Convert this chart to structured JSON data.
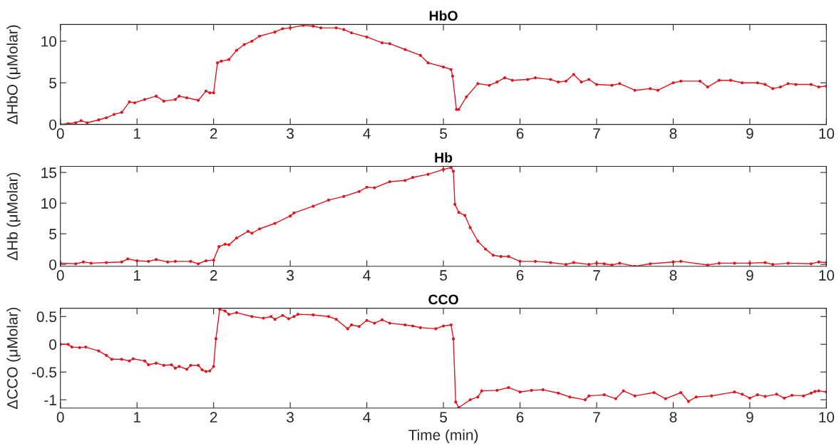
{
  "chart_data": [
    {
      "type": "line",
      "title": "HbO",
      "ylabel": "ΔHbO (μMolar)",
      "xlim": [
        0,
        10
      ],
      "xticks": [
        0,
        1,
        2,
        3,
        4,
        5,
        6,
        7,
        8,
        9,
        10
      ],
      "ylim": [
        0,
        12
      ],
      "yticks": [
        0,
        5,
        10
      ],
      "grid": false,
      "legend": false,
      "marker": "circle",
      "line_style": "solid",
      "series": [
        {
          "color": "#e0141e",
          "x": [
            0,
            0.1,
            0.2,
            0.27,
            0.35,
            0.5,
            0.6,
            0.7,
            0.8,
            0.9,
            0.97,
            1.1,
            1.25,
            1.35,
            1.5,
            1.55,
            1.65,
            1.8,
            1.9,
            1.95,
            2.0,
            2.05,
            2.1,
            2.2,
            2.3,
            2.4,
            2.5,
            2.6,
            2.8,
            2.9,
            3.0,
            3.17,
            3.3,
            3.4,
            3.6,
            3.7,
            3.8,
            4.0,
            4.2,
            4.3,
            4.5,
            4.7,
            4.8,
            5.0,
            5.1,
            5.12,
            5.17,
            5.2,
            5.3,
            5.45,
            5.6,
            5.7,
            5.8,
            5.9,
            6.1,
            6.2,
            6.4,
            6.5,
            6.6,
            6.7,
            6.8,
            6.9,
            7.0,
            7.2,
            7.3,
            7.5,
            7.7,
            7.8,
            8.0,
            8.1,
            8.35,
            8.45,
            8.6,
            8.75,
            8.9,
            9.1,
            9.2,
            9.3,
            9.4,
            9.5,
            9.6,
            9.8,
            9.9,
            10.0
          ],
          "values": [
            0,
            0.1,
            0.2,
            0.45,
            0.2,
            0.55,
            0.8,
            1.2,
            1.45,
            2.7,
            2.6,
            3.0,
            3.4,
            2.8,
            3.0,
            3.4,
            3.2,
            2.9,
            4.0,
            3.8,
            3.8,
            7.4,
            7.6,
            7.8,
            8.9,
            9.6,
            10.0,
            10.6,
            11.1,
            11.5,
            11.6,
            11.9,
            11.8,
            11.6,
            11.6,
            11.4,
            11.0,
            10.5,
            9.8,
            9.7,
            9.0,
            8.3,
            7.4,
            6.9,
            6.6,
            5.8,
            1.8,
            1.8,
            3.3,
            4.9,
            4.7,
            5.1,
            5.6,
            5.3,
            5.4,
            5.6,
            5.4,
            5.1,
            5.2,
            6.0,
            5.1,
            5.4,
            4.8,
            4.7,
            4.9,
            4.1,
            4.3,
            4.1,
            5.0,
            5.2,
            5.2,
            4.5,
            5.3,
            5.3,
            5.0,
            5.0,
            4.8,
            4.3,
            4.5,
            4.9,
            4.8,
            4.8,
            4.5,
            4.6
          ]
        }
      ]
    },
    {
      "type": "line",
      "title": "Hb",
      "ylabel": "ΔHb (μMolar)",
      "xlim": [
        0,
        10
      ],
      "xticks": [
        0,
        1,
        2,
        3,
        4,
        5,
        6,
        7,
        8,
        9,
        10
      ],
      "ylim": [
        -0.3,
        16
      ],
      "yticks": [
        0,
        5,
        10,
        15
      ],
      "grid": false,
      "legend": false,
      "marker": "circle",
      "line_style": "solid",
      "series": [
        {
          "color": "#e0141e",
          "x": [
            0,
            0.2,
            0.3,
            0.4,
            0.6,
            0.8,
            0.88,
            1.0,
            1.15,
            1.25,
            1.4,
            1.5,
            1.7,
            1.8,
            1.9,
            2.0,
            2.07,
            2.15,
            2.2,
            2.3,
            2.45,
            2.5,
            2.6,
            2.8,
            3.0,
            3.05,
            3.3,
            3.5,
            3.7,
            3.9,
            4.0,
            4.1,
            4.3,
            4.5,
            4.6,
            4.8,
            5.0,
            5.1,
            5.13,
            5.15,
            5.2,
            5.28,
            5.35,
            5.45,
            5.55,
            5.65,
            5.75,
            5.85,
            6.0,
            6.2,
            6.4,
            6.6,
            6.7,
            6.9,
            7.0,
            7.1,
            7.2,
            7.3,
            7.5,
            7.7,
            8.0,
            8.1,
            8.45,
            8.6,
            8.8,
            9.0,
            9.2,
            9.3,
            9.5,
            9.8,
            9.9,
            10.0
          ],
          "values": [
            0.2,
            0.1,
            0.4,
            0.2,
            0.3,
            0.4,
            0.9,
            0.6,
            0.5,
            0.8,
            0.4,
            0.5,
            0.5,
            0.1,
            0.6,
            0.7,
            2.9,
            3.3,
            3.2,
            4.3,
            5.4,
            5.1,
            5.8,
            6.7,
            7.9,
            8.4,
            9.5,
            10.5,
            11.1,
            11.9,
            12.6,
            12.5,
            13.5,
            13.7,
            14.2,
            14.7,
            15.5,
            15.8,
            15.2,
            9.8,
            8.5,
            8.0,
            6.0,
            3.8,
            2.5,
            1.5,
            1.3,
            1.3,
            0.5,
            0.5,
            0.3,
            0.0,
            0.3,
            0.0,
            0.2,
            0.1,
            -0.1,
            0.2,
            -0.3,
            0.1,
            0.4,
            0.5,
            -0.1,
            0.2,
            0.2,
            0.2,
            0.3,
            0.0,
            0.2,
            0.1,
            0.4,
            0.3
          ]
        }
      ]
    },
    {
      "type": "line",
      "title": "CCO",
      "xlabel": "Time (min)",
      "ylabel": "ΔCCO (μMolar)",
      "xlim": [
        0,
        10
      ],
      "xticks": [
        0,
        1,
        2,
        3,
        4,
        5,
        6,
        7,
        8,
        9,
        10
      ],
      "ylim": [
        -1.15,
        0.65
      ],
      "yticks": [
        {
          "value": -1,
          "label": "-1"
        },
        {
          "value": -0.5,
          "label": "-0.5"
        },
        0,
        0.5
      ],
      "grid": false,
      "legend": false,
      "marker": "circle",
      "line_style": "solid",
      "series": [
        {
          "color": "#e0141e",
          "x": [
            0,
            0.1,
            0.15,
            0.25,
            0.33,
            0.5,
            0.6,
            0.67,
            0.8,
            0.9,
            0.95,
            1.1,
            1.15,
            1.25,
            1.35,
            1.45,
            1.5,
            1.55,
            1.65,
            1.7,
            1.8,
            1.85,
            1.9,
            1.95,
            2.0,
            2.03,
            2.08,
            2.15,
            2.2,
            2.3,
            2.5,
            2.65,
            2.75,
            2.8,
            2.9,
            2.98,
            3.05,
            3.1,
            3.3,
            3.5,
            3.6,
            3.75,
            3.8,
            3.9,
            4.0,
            4.1,
            4.2,
            4.3,
            4.5,
            4.6,
            4.7,
            4.9,
            5.0,
            5.1,
            5.13,
            5.16,
            5.2,
            5.35,
            5.45,
            5.5,
            5.7,
            5.85,
            6.0,
            6.15,
            6.3,
            6.5,
            6.65,
            6.85,
            6.9,
            7.1,
            7.25,
            7.35,
            7.5,
            7.75,
            7.9,
            8.1,
            8.2,
            8.3,
            8.5,
            8.8,
            8.9,
            9.0,
            9.1,
            9.2,
            9.35,
            9.45,
            9.55,
            9.7,
            9.8,
            9.85,
            9.9,
            10.0
          ],
          "values": [
            0.0,
            0.0,
            -0.05,
            -0.06,
            -0.05,
            -0.12,
            -0.2,
            -0.27,
            -0.27,
            -0.3,
            -0.26,
            -0.3,
            -0.37,
            -0.34,
            -0.38,
            -0.37,
            -0.43,
            -0.4,
            -0.45,
            -0.38,
            -0.38,
            -0.46,
            -0.49,
            -0.48,
            -0.4,
            0.1,
            0.63,
            0.6,
            0.54,
            0.57,
            0.5,
            0.47,
            0.5,
            0.45,
            0.52,
            0.46,
            0.5,
            0.54,
            0.53,
            0.5,
            0.45,
            0.28,
            0.35,
            0.32,
            0.43,
            0.38,
            0.44,
            0.38,
            0.35,
            0.33,
            0.3,
            0.28,
            0.33,
            0.35,
            0.1,
            -1.04,
            -1.14,
            -1.0,
            -0.95,
            -0.84,
            -0.83,
            -0.78,
            -0.86,
            -0.83,
            -0.82,
            -0.88,
            -0.95,
            -1.0,
            -0.93,
            -0.91,
            -0.98,
            -0.84,
            -0.93,
            -0.87,
            -0.98,
            -0.87,
            -1.03,
            -0.95,
            -0.93,
            -0.86,
            -0.9,
            -0.97,
            -0.91,
            -0.94,
            -0.9,
            -0.97,
            -0.92,
            -0.93,
            -0.88,
            -0.85,
            -0.84,
            -0.86
          ]
        }
      ]
    }
  ]
}
